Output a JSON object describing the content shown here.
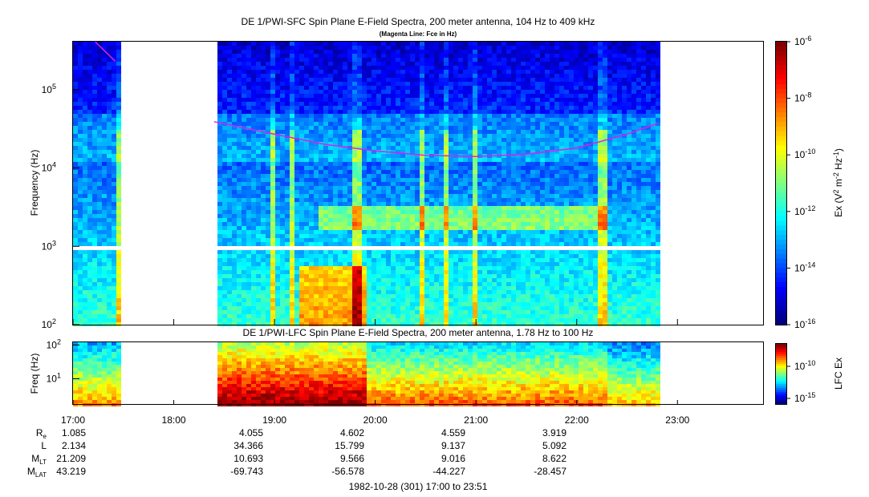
{
  "chart_data": [
    {
      "type": "heatmap",
      "title": "DE 1/PWI-SFC  Spin Plane E-Field Spectra, 200 meter antenna, 104 Hz to 409 kHz",
      "subtitle": "(Magenta Line: Fce in Hz)",
      "xlabel": "",
      "ylabel": "Frequency (Hz)",
      "y_scale": "log",
      "ylim": [
        100,
        409000
      ],
      "y_ticks": [
        {
          "value": 100,
          "base": "10",
          "exp": "2"
        },
        {
          "value": 1000,
          "base": "10",
          "exp": "3"
        },
        {
          "value": 10000,
          "base": "10",
          "exp": "4"
        },
        {
          "value": 100000,
          "base": "10",
          "exp": "5"
        }
      ],
      "x_range_hours": [
        17.0,
        23.85
      ],
      "data_gaps_hours": [
        [
          17.45,
          18.4
        ],
        [
          22.8,
          23.85
        ]
      ],
      "colorbar": {
        "label_prefix": "Ex (V",
        "label_sup1": "2",
        "label_mid": " m",
        "label_sup2": "-2",
        "label_mid2": " Hz",
        "label_sup3": "-1",
        "label_suffix": ")",
        "scale": "log",
        "range": [
          1e-16,
          1e-06
        ],
        "ticks": [
          {
            "value": -6,
            "base": "10",
            "exp": "-6"
          },
          {
            "value": -8,
            "base": "10",
            "exp": "-8"
          },
          {
            "value": -10,
            "base": "10",
            "exp": "-10"
          },
          {
            "value": -12,
            "base": "10",
            "exp": "-12"
          },
          {
            "value": -14,
            "base": "10",
            "exp": "-14"
          },
          {
            "value": -16,
            "base": "10",
            "exp": "-16"
          }
        ]
      },
      "overlay_line": {
        "color": "#e020e0",
        "points": [
          [
            17.22,
            409000
          ],
          [
            17.42,
            230000
          ],
          [
            18.4,
            39000
          ],
          [
            19.0,
            27000
          ],
          [
            19.5,
            20000
          ],
          [
            20.0,
            16500
          ],
          [
            20.5,
            14500
          ],
          [
            21.0,
            14000
          ],
          [
            21.5,
            15000
          ],
          [
            22.0,
            18000
          ],
          [
            22.5,
            27000
          ],
          [
            22.8,
            37000
          ]
        ]
      }
    },
    {
      "type": "heatmap",
      "title": "DE 1/PWI-LFC  Spin Plane E-Field Spectra, 200 meter antenna, 1.78 Hz to 100 Hz",
      "ylabel": "Freq (Hz)",
      "y_scale": "log",
      "ylim": [
        1.78,
        120
      ],
      "y_ticks": [
        {
          "value": 10,
          "base": "10",
          "exp": "1"
        },
        {
          "value": 100,
          "base": "10",
          "exp": "2"
        }
      ],
      "colorbar": {
        "label": "LFC Ex",
        "ticks": [
          {
            "value": -10,
            "base": "10",
            "exp": "-10"
          },
          {
            "value": -15,
            "base": "10",
            "exp": "-15"
          }
        ]
      }
    }
  ],
  "x_axis": {
    "ticks": [
      "17:00",
      "18:00",
      "19:00",
      "20:00",
      "21:00",
      "22:00",
      "23:00"
    ],
    "tick_hours": [
      17,
      18,
      19,
      20,
      21,
      22,
      23
    ]
  },
  "ephemeris": {
    "rows": [
      {
        "label": "R",
        "sub": "e",
        "values": [
          "1.085",
          "",
          "4.055",
          "4.602",
          "4.559",
          "3.919"
        ]
      },
      {
        "label": "L",
        "sub": "",
        "values": [
          "2.134",
          "",
          "34.366",
          "15.799",
          "9.137",
          "5.092"
        ]
      },
      {
        "label": "M",
        "sub": "LT",
        "values": [
          "21.209",
          "",
          "10.693",
          "9.566",
          "9.016",
          "8.622"
        ]
      },
      {
        "label": "M",
        "sub": "LAT",
        "values": [
          "43.219",
          "",
          "-69.743",
          "-56.578",
          "-44.227",
          "-28.457"
        ]
      }
    ],
    "footer": "1982-10-28 (301) 17:00 to 23:51"
  }
}
